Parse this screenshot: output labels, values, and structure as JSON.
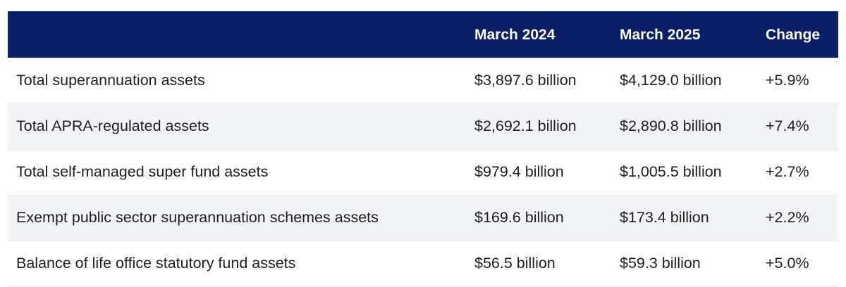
{
  "table": {
    "headers": [
      "",
      "March 2024",
      "March 2025",
      "Change"
    ],
    "rows": [
      {
        "label": "Total superannuation assets",
        "march_2024": "$3,897.6 billion",
        "march_2025": "$4,129.0 billion",
        "change": "+5.9%"
      },
      {
        "label": "Total APRA-regulated assets",
        "march_2024": "$2,692.1 billion",
        "march_2025": "$2,890.8 billion",
        "change": "+7.4%"
      },
      {
        "label": "Total self-managed super fund assets",
        "march_2024": "$979.4 billion",
        "march_2025": "$1,005.5 billion",
        "change": "+2.7%"
      },
      {
        "label": "Exempt public sector superannuation schemes assets",
        "march_2024": "$169.6 billion",
        "march_2025": "$173.4 billion",
        "change": "+2.2%"
      },
      {
        "label": "Balance of life office statutory fund assets",
        "march_2024": "$56.5 billion",
        "march_2025": "$59.3 billion",
        "change": "+5.0%"
      }
    ]
  },
  "colors": {
    "header_bg": "#0b1f66",
    "header_text": "#ffffff",
    "row_alt_bg": "#f2f4f7",
    "body_text": "#1f1f1f"
  }
}
